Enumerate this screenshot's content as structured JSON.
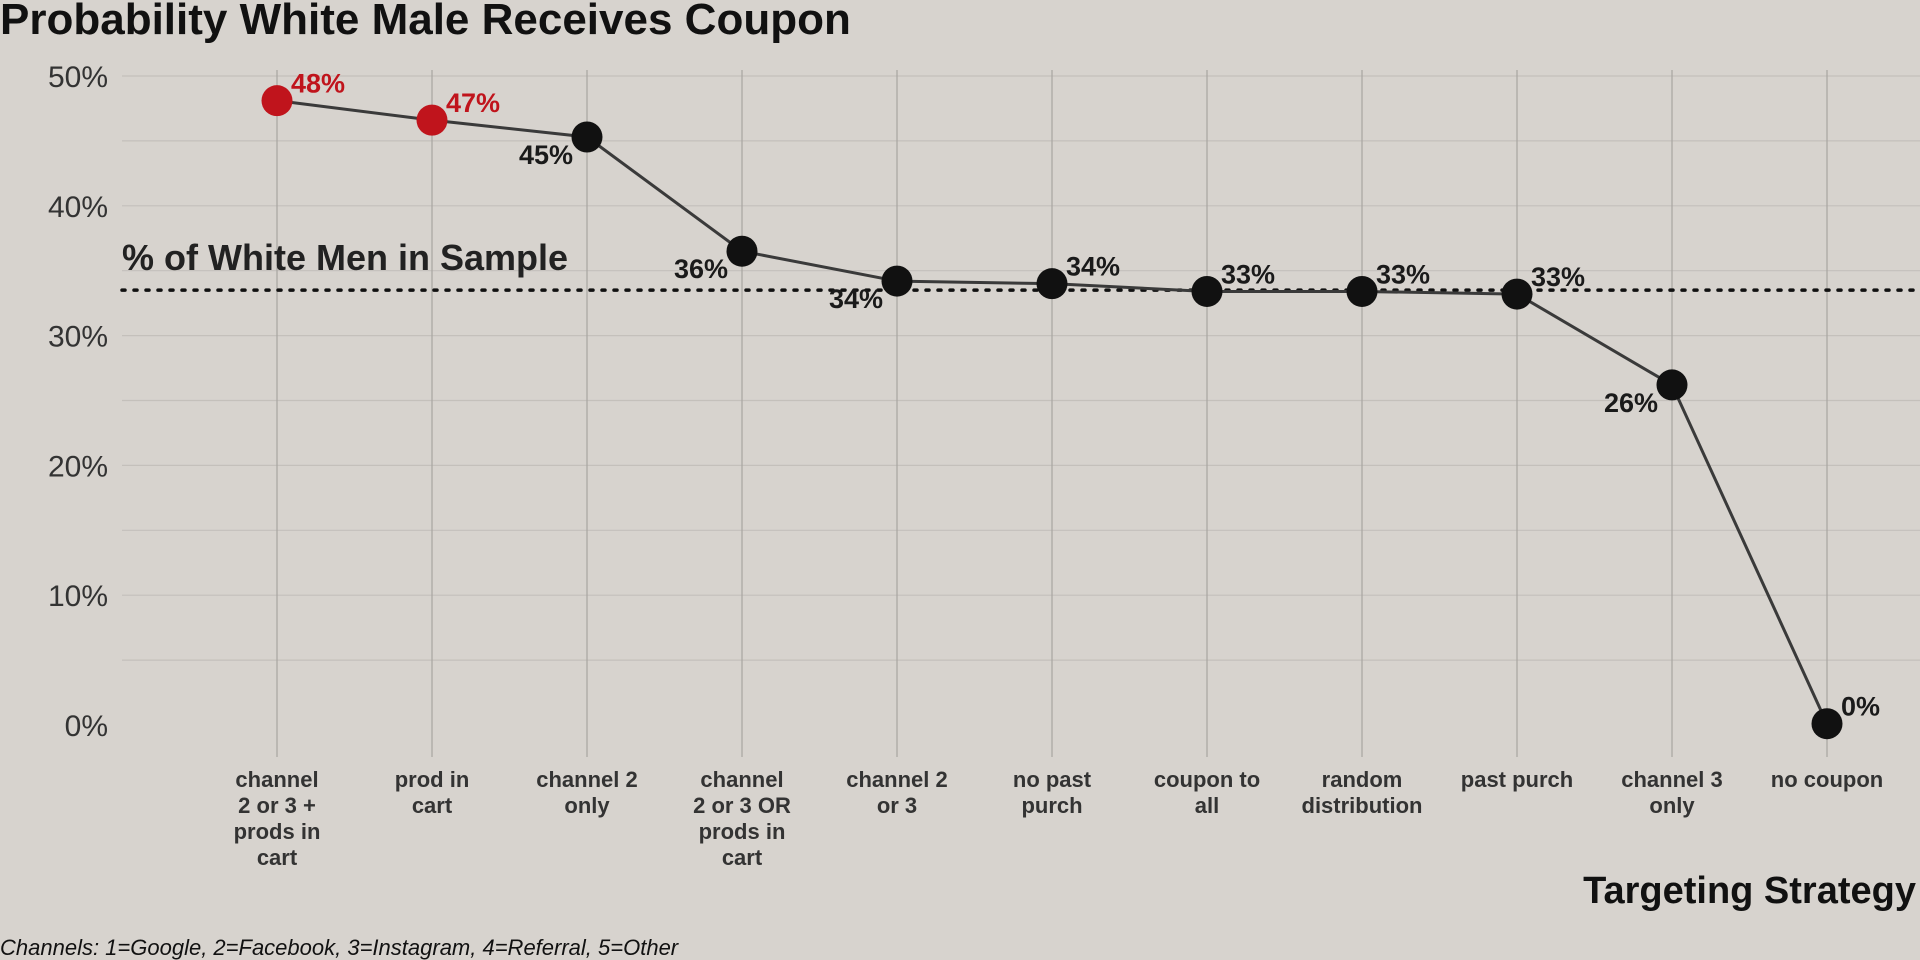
{
  "chart_data": {
    "type": "line",
    "title": "Probability White Male Receives Coupon",
    "xlabel": "Targeting Strategy",
    "ylabel": "",
    "caption": "Channels: 1=Google, 2=Facebook, 3=Instagram, 4=Referral, 5=Other",
    "ylim": [
      0,
      50
    ],
    "yticks": [
      0,
      10,
      20,
      30,
      40,
      50
    ],
    "ytick_labels": [
      "0%",
      "10%",
      "20%",
      "30%",
      "40%",
      "50%"
    ],
    "grid": true,
    "categories": [
      [
        "channel",
        "2 or 3 +",
        "prods in",
        "cart"
      ],
      [
        "prod in",
        "cart"
      ],
      [
        "channel 2",
        "only"
      ],
      [
        "channel",
        "2 or 3 OR",
        "prods in",
        "cart"
      ],
      [
        "channel 2",
        "or 3"
      ],
      [
        "no past",
        "purch"
      ],
      [
        "coupon to",
        "all"
      ],
      [
        "random",
        "distribution"
      ],
      [
        "past purch"
      ],
      [
        "channel 3",
        "only"
      ],
      [
        "no coupon"
      ]
    ],
    "values": [
      48.1,
      46.6,
      45.3,
      36.5,
      34.2,
      34.0,
      33.4,
      33.4,
      33.2,
      26.2,
      0.1
    ],
    "value_labels": [
      "48%",
      "47%",
      "45%",
      "36%",
      "34%",
      "34%",
      "33%",
      "33%",
      "33%",
      "26%",
      "0%"
    ],
    "label_positions": [
      "right",
      "right",
      "left",
      "left",
      "left",
      "right",
      "right",
      "right",
      "right",
      "left",
      "right"
    ],
    "highlight": [
      true,
      true,
      false,
      false,
      false,
      false,
      false,
      false,
      false,
      false,
      false
    ],
    "reference_line": {
      "value": 33.5,
      "label": "% of White Men in Sample"
    },
    "colors": {
      "highlight": "#c0141c",
      "point": "#111111",
      "line": "#3a3a3a",
      "reference": "#111111",
      "gridline": "#c4c0bb",
      "category_line": "#a8a5a1"
    }
  }
}
